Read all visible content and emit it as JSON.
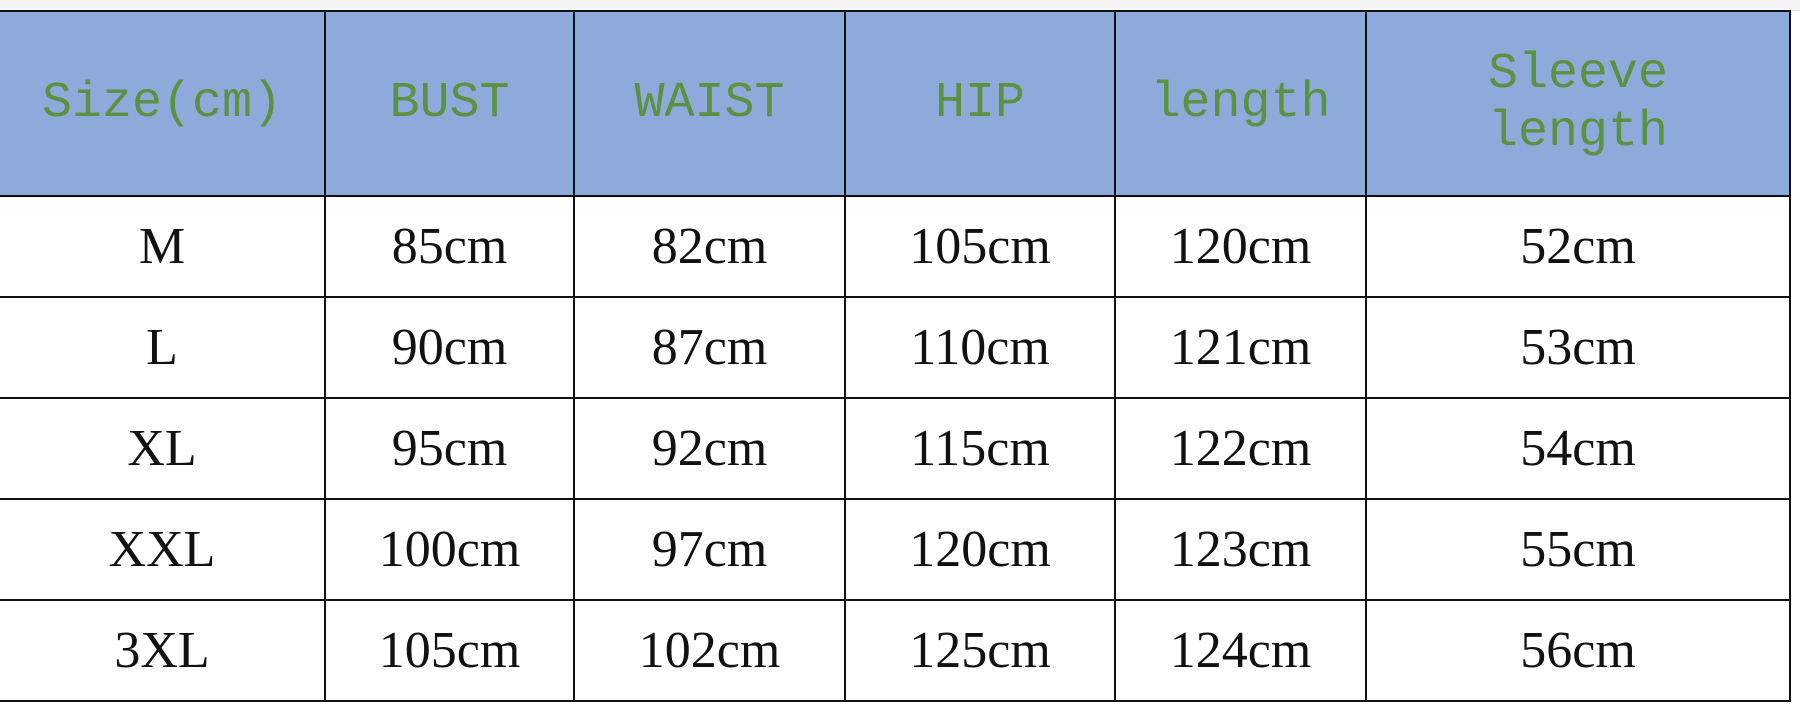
{
  "header_color": "#8eaadb",
  "header_text_color": "#5c9141",
  "table": {
    "headers": [
      "Size(cm)",
      "BUST",
      "WAIST",
      "HIP",
      "length",
      "Sleeve length"
    ],
    "rows": [
      [
        "M",
        "85cm",
        "82cm",
        "105cm",
        "120cm",
        "52cm"
      ],
      [
        "L",
        "90cm",
        "87cm",
        "110cm",
        "121cm",
        "53cm"
      ],
      [
        "XL",
        "95cm",
        "92cm",
        "115cm",
        "122cm",
        "54cm"
      ],
      [
        "XXL",
        "100cm",
        "97cm",
        "120cm",
        "123cm",
        "55cm"
      ],
      [
        "3XL",
        "105cm",
        "102cm",
        "125cm",
        "124cm",
        "56cm"
      ]
    ]
  }
}
